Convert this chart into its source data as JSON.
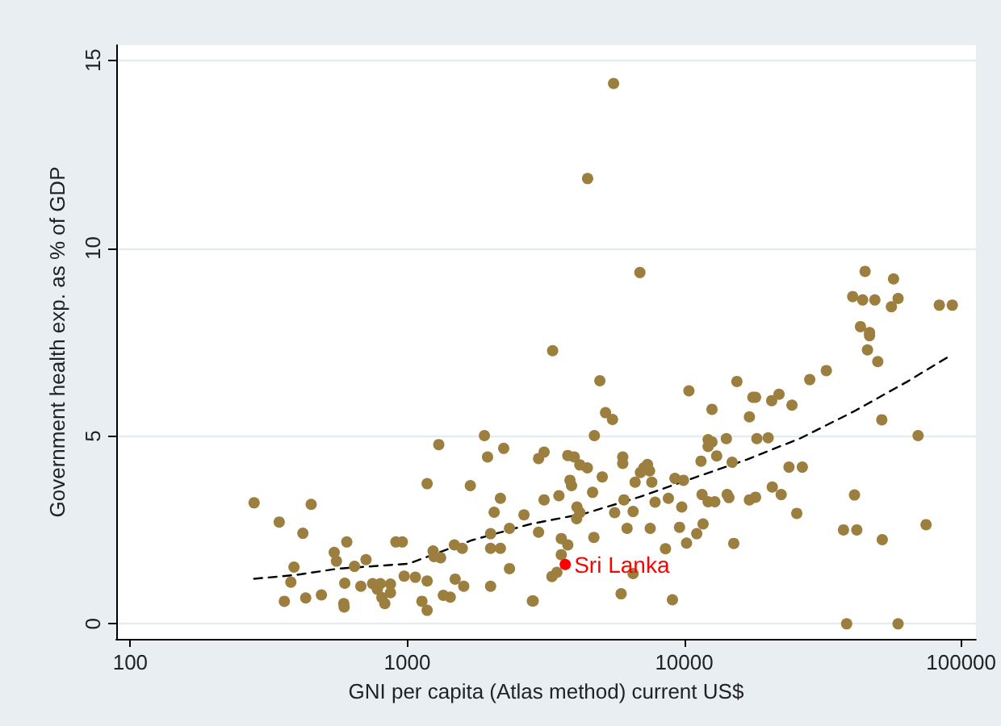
{
  "chart_data": {
    "type": "scatter",
    "xlabel": "GNI per capita (Atlas method) current US$",
    "ylabel": "Government health exp. as % of GDP",
    "log": "x",
    "xlim": [
      89,
      113000
    ],
    "ylim": [
      -0.4,
      15.4
    ],
    "xticks": [
      100,
      1000,
      10000,
      100000
    ],
    "yticks": [
      0,
      5,
      10,
      15
    ],
    "grid": "y",
    "legend": false,
    "marker": "circle",
    "series": [
      {
        "color": "#9c7f3f",
        "x": [
          280,
          345,
          450,
          420,
          390,
          380,
          360,
          430,
          490,
          545,
          555,
          605,
          645,
          595,
          590,
          592,
          680,
          710,
          750,
          780,
          800,
          810,
          830,
          870,
          870,
          910,
          960,
          975,
          1070,
          1130,
          1180,
          1180,
          1180,
          1300,
          1240,
          1320,
          1250,
          1350,
          1430,
          1490,
          1480,
          1580,
          1600,
          1690,
          1900,
          1950,
          2000,
          2000,
          2060,
          2000,
          2170,
          2170,
          2230,
          2340,
          2340,
          2640,
          2830,
          2980,
          3120,
          3120,
          2980,
          3350,
          4960,
          5200,
          5510,
          4740,
          3800,
          4010,
          4200,
          4470,
          3870,
          3920,
          3530,
          5060,
          4670,
          6000,
          6000,
          6060,
          5610,
          6540,
          6650,
          7150,
          7370,
          6950,
          7500,
          7640,
          7850,
          8770,
          9260,
          9940,
          9800,
          4100,
          4200,
          4090,
          3600,
          3800,
          4720,
          6220,
          7540,
          9620,
          10200,
          11100,
          11700,
          8560,
          3600,
          3330,
          3470,
          2850,
          5920,
          6540,
          9070,
          10400,
          12600,
          15500,
          17200,
          17700,
          18100,
          20700,
          22000,
          24500,
          28400,
          32600,
          12200,
          12200,
          12600,
          13100,
          14200,
          14900,
          18300,
          20100,
          11500,
          11600,
          12200,
          12900,
          14300,
          14500,
          17200,
          18100,
          20800,
          22400,
          23900,
          26700,
          25500,
          15100,
          37600,
          42000,
          41200,
          38600,
          59200,
          51900,
          51700,
          69900,
          74700,
          50000,
          45900,
          46700,
          46700,
          43300,
          5560,
          4480,
          6920,
          45000,
          57000,
          40600,
          44100,
          48800,
          59200,
          56000,
          83400,
          92900
        ],
        "values": [
          3.22,
          2.71,
          3.18,
          2.41,
          1.51,
          1.11,
          0.6,
          0.69,
          0.77,
          1.9,
          1.67,
          2.18,
          1.53,
          1.08,
          0.54,
          0.45,
          1.0,
          1.71,
          1.07,
          0.92,
          1.07,
          0.7,
          0.54,
          1.06,
          0.83,
          2.18,
          2.18,
          1.27,
          1.24,
          0.6,
          0.36,
          1.14,
          3.73,
          4.77,
          1.94,
          1.76,
          1.79,
          0.76,
          0.71,
          1.19,
          2.1,
          2.01,
          1.0,
          3.68,
          5.01,
          4.44,
          2.01,
          1.0,
          2.97,
          2.4,
          3.34,
          2.01,
          4.67,
          2.54,
          1.47,
          2.9,
          0.61,
          4.4,
          4.57,
          3.3,
          2.44,
          7.27,
          6.47,
          5.62,
          5.44,
          5.01,
          4.48,
          4.44,
          4.23,
          4.15,
          3.82,
          3.68,
          3.41,
          3.91,
          3.5,
          4.44,
          4.27,
          3.3,
          2.96,
          2.99,
          3.77,
          4.15,
          4.24,
          4.03,
          4.07,
          3.77,
          3.24,
          3.34,
          3.87,
          3.82,
          3.11,
          3.11,
          2.96,
          2.8,
          2.27,
          2.1,
          2.3,
          2.54,
          2.54,
          2.57,
          2.15,
          2.4,
          2.66,
          2.0,
          1.84,
          1.26,
          1.37,
          0.61,
          0.8,
          1.34,
          0.64,
          6.2,
          5.71,
          6.45,
          5.51,
          6.03,
          6.03,
          5.94,
          6.11,
          5.82,
          6.5,
          6.74,
          4.9,
          4.72,
          4.84,
          4.47,
          4.93,
          4.3,
          4.93,
          4.95,
          4.33,
          3.44,
          3.25,
          3.25,
          3.44,
          3.36,
          3.3,
          3.37,
          3.64,
          3.44,
          4.17,
          4.17,
          2.94,
          2.14,
          2.5,
          2.5,
          3.43,
          0.0,
          0.0,
          2.24,
          5.43,
          5.01,
          2.64,
          6.98,
          7.29,
          7.75,
          7.67,
          7.91,
          14.38,
          11.85,
          9.35,
          9.38,
          9.18,
          8.71,
          8.62,
          8.62,
          8.66,
          8.44,
          8.48,
          8.48
        ]
      },
      {
        "name": "Sri Lanka",
        "color": "#ff0000",
        "x": [
          3720
        ],
        "values": [
          1.58
        ]
      },
      {
        "type": "line",
        "color": "#000000",
        "line_style": "dashed",
        "marker": "none",
        "x": [
          280,
          395,
          565,
          1010,
          1720,
          2800,
          4400,
          6850,
          10700,
          16800,
          26300,
          40900,
          63700,
          90000
        ],
        "values": [
          1.2,
          1.3,
          1.47,
          1.6,
          2.23,
          2.66,
          2.94,
          3.37,
          3.87,
          4.37,
          4.94,
          5.65,
          6.44,
          7.11
        ]
      }
    ]
  }
}
